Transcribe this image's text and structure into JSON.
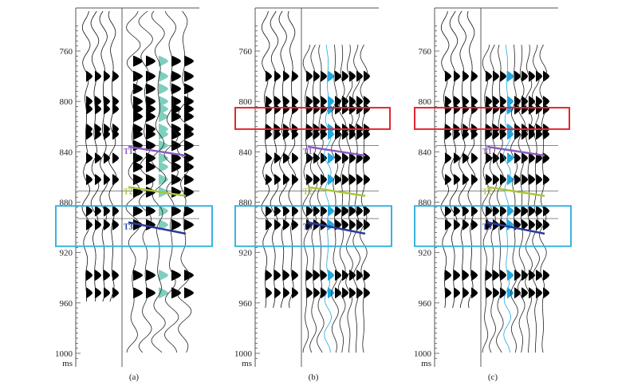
{
  "time_unit": "ms",
  "time_ticks": [
    "760",
    "800",
    "840",
    "880",
    "920",
    "960",
    "1000"
  ],
  "horizon_labels": [
    "T1",
    "T2",
    "T3"
  ],
  "panels": [
    {
      "label": "(a)",
      "highlight_red": false,
      "teal_fill": true
    },
    {
      "label": "(b)",
      "highlight_red": true,
      "teal_fill": false
    },
    {
      "label": "(c)",
      "highlight_red": true,
      "teal_fill": false
    }
  ],
  "colors": {
    "red_box": "#e3262f",
    "blue_box": "#3ab3e0",
    "t1": "#8a5cc2",
    "t2": "#a8c63a",
    "t3": "#2b3b9a",
    "teal": "#7fcfbe",
    "cyan": "#22a7e0",
    "axis": "#555555"
  }
}
